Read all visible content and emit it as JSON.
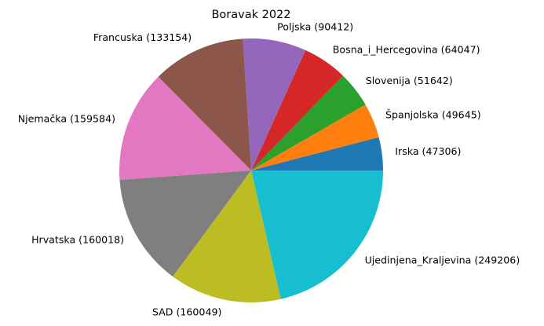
{
  "chart_data": {
    "type": "pie",
    "title": "Boravak 2022",
    "slices": [
      {
        "label": "Irska (47306)",
        "value": 47306,
        "color": "#1f77b4"
      },
      {
        "label": "Španjolska (49645)",
        "value": 49645,
        "color": "#ff7f0e"
      },
      {
        "label": "Slovenija (51642)",
        "value": 51642,
        "color": "#2ca02c"
      },
      {
        "label": "Bosna_i_Hercegovina (64047)",
        "value": 64047,
        "color": "#d62728"
      },
      {
        "label": "Poljska (90412)",
        "value": 90412,
        "color": "#9467bd"
      },
      {
        "label": "Francuska (133154)",
        "value": 133154,
        "color": "#8c564b"
      },
      {
        "label": "Njemačka (159584)",
        "value": 159584,
        "color": "#e377c2"
      },
      {
        "label": "Hrvatska (160018)",
        "value": 160018,
        "color": "#7f7f7f"
      },
      {
        "label": "SAD (160049)",
        "value": 160049,
        "color": "#bcbd22"
      },
      {
        "label": "Ujedinjena_Kraljevina (249206)",
        "value": 249206,
        "color": "#17becf"
      }
    ],
    "start_angle_deg": 0,
    "direction": "counterclockwise",
    "legend": "none",
    "grid": false
  }
}
